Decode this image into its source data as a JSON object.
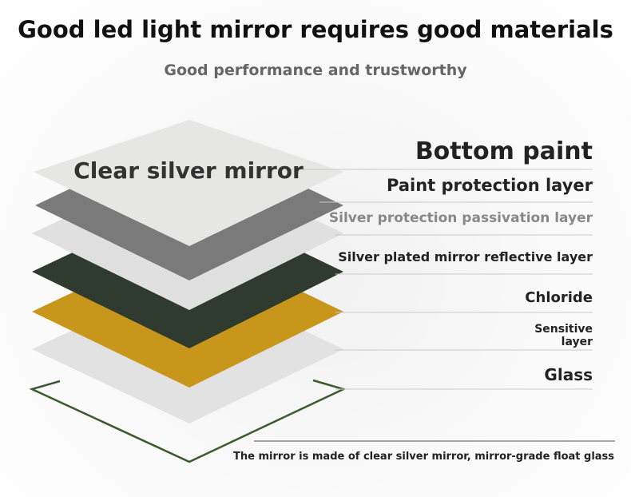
{
  "header": {
    "title": "Good led light mirror requires good materials",
    "subtitle": "Good performance and trustworthy"
  },
  "diagram": {
    "top_layer_label": "Clear silver mirror",
    "layer_labels": [
      "Bottom paint",
      "Paint protection layer",
      "Silver protection passivation layer",
      "Silver plated mirror reflective layer",
      "Chloride",
      "Sensitive layer",
      "Glass"
    ],
    "footnote": "The mirror is made of clear silver mirror, mirror-grade float glass"
  }
}
